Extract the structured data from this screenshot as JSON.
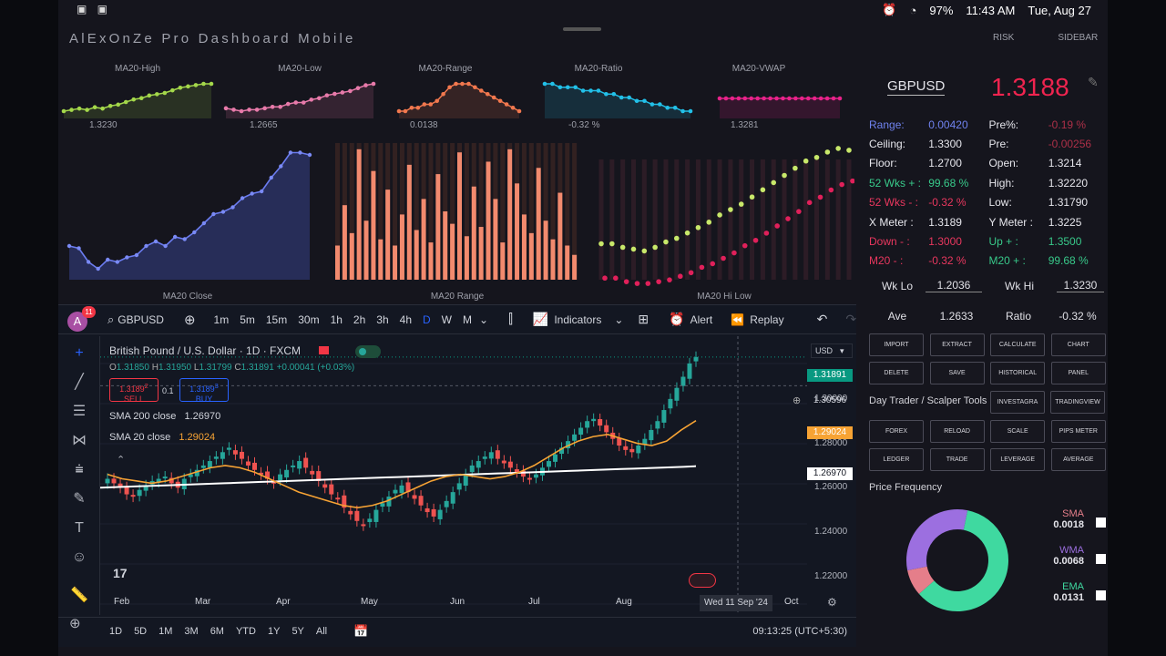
{
  "status_bar": {
    "left_icons": "screenshot-icons",
    "battery": "97%",
    "time": "11:43 AM",
    "date": "Tue, Aug 27"
  },
  "app": {
    "title": "AlExOnZe Pro Dashboard Mobile",
    "links": [
      "RISK",
      "SIDEBAR"
    ]
  },
  "sparklines": [
    {
      "title": "MA20-High",
      "value": "1.3230",
      "color": "#a4d84a",
      "values": [
        10,
        11,
        12,
        11,
        13,
        12,
        14,
        15,
        17,
        19,
        20,
        22,
        23,
        24,
        26,
        28,
        29,
        30,
        31,
        31
      ]
    },
    {
      "title": "MA20-Low",
      "value": "1.2665",
      "color": "#e87aaa",
      "values": [
        13,
        12,
        11,
        12,
        12,
        13,
        14,
        14,
        16,
        17,
        17,
        19,
        20,
        22,
        23,
        24,
        25,
        27,
        29,
        30
      ]
    },
    {
      "title": "MA20-Range",
      "value": "0.0138",
      "color": "#f2784e",
      "values": [
        15,
        15,
        16,
        16,
        17,
        17,
        18,
        20,
        22,
        23,
        23,
        23,
        22,
        21,
        20,
        19,
        18,
        17,
        16,
        15
      ]
    },
    {
      "title": "MA20-Ratio",
      "value": "-0.32 %",
      "color": "#22c0e8",
      "values": [
        26,
        26,
        25,
        25,
        25,
        24,
        24,
        24,
        23,
        23,
        22,
        22,
        21,
        21,
        20,
        20,
        19,
        19,
        18,
        18
      ]
    },
    {
      "title": "MA20-VWAP",
      "value": "1.3281",
      "color": "#e8228a",
      "values": [
        22,
        22,
        22,
        22,
        22,
        22,
        22,
        22,
        22,
        22,
        22,
        22,
        22,
        22,
        22,
        22,
        22,
        22,
        22,
        22
      ]
    }
  ],
  "big_charts": {
    "close_label": "MA20 Close",
    "range_label": "MA20 Range",
    "hilow_label": "MA20 Hi Low",
    "close_values": [
      1.262,
      1.261,
      1.255,
      1.252,
      1.256,
      1.255,
      1.257,
      1.258,
      1.262,
      1.264,
      1.262,
      1.266,
      1.265,
      1.268,
      1.272,
      1.276,
      1.277,
      1.279,
      1.283,
      1.285,
      1.286,
      1.292,
      1.297,
      1.303,
      1.303,
      1.302
    ],
    "range_values": [
      0.011,
      0.024,
      0.015,
      0.042,
      0.019,
      0.035,
      0.013,
      0.029,
      0.011,
      0.021,
      0.037,
      0.016,
      0.026,
      0.012,
      0.034,
      0.022,
      0.018,
      0.041,
      0.014,
      0.03,
      0.017,
      0.038,
      0.026,
      0.012,
      0.042,
      0.031,
      0.021,
      0.015,
      0.036,
      0.019,
      0.013,
      0.028,
      0.011,
      0.008
    ],
    "hi_values": [
      1.27,
      1.27,
      1.268,
      1.267,
      1.266,
      1.268,
      1.271,
      1.273,
      1.276,
      1.279,
      1.282,
      1.286,
      1.289,
      1.292,
      1.296,
      1.3,
      1.304,
      1.308,
      1.312,
      1.316,
      1.318,
      1.321,
      1.323,
      1.322
    ],
    "lo_values": [
      1.258,
      1.258,
      1.256,
      1.255,
      1.255,
      1.256,
      1.257,
      1.259,
      1.261,
      1.264,
      1.266,
      1.269,
      1.272,
      1.276,
      1.279,
      1.283,
      1.287,
      1.291,
      1.295,
      1.3,
      1.303,
      1.307,
      1.31,
      1.312
    ]
  },
  "panel": {
    "symbol": "GBPUSD",
    "price": "1.3188",
    "rows": [
      {
        "l": "Range:",
        "v": "0.00420",
        "l2": "Pre%:",
        "v2": "-0.19 %",
        "cl": "c-blue",
        "cv": "c-blue",
        "cl2": "c-white",
        "cv2": "c-dim"
      },
      {
        "l": "Ceiling:",
        "v": "1.3300",
        "l2": "Pre:",
        "v2": "-0.00256",
        "cl": "c-white",
        "cv": "c-white",
        "cl2": "c-white",
        "cv2": "c-dim"
      },
      {
        "l": "Floor:",
        "v": "1.2700",
        "l2": "Open:",
        "v2": "1.3214",
        "cl": "c-white",
        "cv": "c-white",
        "cl2": "c-white",
        "cv2": "c-white"
      },
      {
        "l": "52 Wks + :",
        "v": "99.68 %",
        "l2": "High:",
        "v2": "1.32220",
        "cl": "c-green",
        "cv": "c-green",
        "cl2": "c-white",
        "cv2": "c-white"
      },
      {
        "l": "52 Wks - :",
        "v": "-0.32 %",
        "l2": "Low:",
        "v2": "1.31790",
        "cl": "c-red",
        "cv": "c-red",
        "cl2": "c-white",
        "cv2": "c-white"
      },
      {
        "l": "X Meter :",
        "v": "1.3189",
        "l2": "Y Meter :",
        "v2": "1.3225",
        "cl": "c-white",
        "cv": "c-white",
        "cl2": "c-white",
        "cv2": "c-white"
      },
      {
        "l": "Down - :",
        "v": "1.3000",
        "l2": "Up + :",
        "v2": "1.3500",
        "cl": "c-red",
        "cv": "c-red",
        "cl2": "c-green",
        "cv2": "c-green"
      },
      {
        "l": "M20 - :",
        "v": "-0.32 %",
        "l2": "M20 + :",
        "v2": "99.68 %",
        "cl": "c-red",
        "cv": "c-red",
        "cl2": "c-green",
        "cv2": "c-green"
      }
    ],
    "wk_lo_label": "Wk Lo",
    "wk_lo": "1.2036",
    "wk_hi_label": "Wk Hi",
    "wk_hi": "1.3230",
    "ave_label": "Ave",
    "ave": "1.2633",
    "ratio_label": "Ratio",
    "ratio": "-0.32 %",
    "buttons_top": [
      "IMPORT",
      "EXTRACT",
      "CALCULATE",
      "CHART",
      "DELETE",
      "SAVE",
      "HISTORICAL",
      "PANEL"
    ],
    "tools_title": "Day Trader / Scalper Tools",
    "tools_first": [
      "INVESTAGRA",
      "TRADINGVIEW"
    ],
    "buttons_bottom": [
      "FOREX",
      "RELOAD",
      "SCALE",
      "PIPS METER",
      "LEDGER",
      "TRADE",
      "LEVERAGE",
      "AVERAGE"
    ],
    "freq_title": "Price Frequency",
    "freq": [
      {
        "name": "SMA",
        "value": "0.0018",
        "color": "#e57e8a"
      },
      {
        "name": "WMA",
        "value": "0.0068",
        "color": "#9c6fe0"
      },
      {
        "name": "EMA",
        "value": "0.0131",
        "color": "#3fd9a0"
      }
    ]
  },
  "tv": {
    "avatar_letter": "A",
    "notif_count": "11",
    "symbol": "GBPUSD",
    "timeframes": [
      "1m",
      "5m",
      "15m",
      "30m",
      "1h",
      "2h",
      "3h",
      "4h",
      "D",
      "W",
      "M"
    ],
    "active_tf": "D",
    "indicators_label": "Indicators",
    "alert_label": "Alert",
    "replay_label": "Replay",
    "title": "British Pound / U.S. Dollar · 1D · FXCM",
    "ohlc": {
      "o": "1.31850",
      "h": "1.31950",
      "l": "1.31799",
      "c": "1.31891",
      "chg": "+0.00041 (+0.03%)"
    },
    "sell_price": "1.3189",
    "sell_sup": "2",
    "sell_label": "SELL",
    "spread": "0.1",
    "buy_price": "1.3189",
    "buy_sup": "3",
    "buy_label": "BUY",
    "sma200_label": "SMA 200 close",
    "sma200": "1.26970",
    "sma20_label": "SMA 20 close",
    "sma20": "1.29024",
    "currency": "USD",
    "price_axis": [
      "1.30000",
      "1.28000",
      "1.26000",
      "1.24000",
      "1.22000"
    ],
    "tag_last": "1.31891",
    "tag_cross": "1.30596",
    "tag_sma20": "1.29024",
    "tag_sma200": "1.26970",
    "months": [
      "Feb",
      "Mar",
      "Apr",
      "May",
      "Jun",
      "Jul",
      "Aug"
    ],
    "crosshair_date": "Wed 11 Sep '24",
    "oct_label": "Oct",
    "ranges": [
      "1D",
      "5D",
      "1M",
      "3M",
      "6M",
      "YTD",
      "1Y",
      "5Y",
      "All"
    ],
    "clock": "09:13:25 (UTC+5:30)",
    "logo": "17"
  },
  "chart_data": {
    "type": "candlestick",
    "title": "British Pound / U.S. Dollar · 1D · FXCM",
    "x_months": [
      "Feb",
      "Mar",
      "Apr",
      "May",
      "Jun",
      "Jul",
      "Aug"
    ],
    "ylim": [
      1.21,
      1.325
    ],
    "close_values": [
      1.264,
      1.262,
      1.26,
      1.257,
      1.256,
      1.259,
      1.261,
      1.263,
      1.264,
      1.265,
      1.262,
      1.26,
      1.264,
      1.266,
      1.268,
      1.27,
      1.272,
      1.274,
      1.276,
      1.278,
      1.275,
      1.273,
      1.27,
      1.268,
      1.266,
      1.264,
      1.262,
      1.266,
      1.268,
      1.27,
      1.272,
      1.269,
      1.266,
      1.263,
      1.26,
      1.257,
      1.255,
      1.251,
      1.248,
      1.245,
      1.243,
      1.246,
      1.25,
      1.253,
      1.256,
      1.259,
      1.261,
      1.258,
      1.255,
      1.252,
      1.249,
      1.247,
      1.25,
      1.254,
      1.258,
      1.262,
      1.266,
      1.27,
      1.272,
      1.274,
      1.276,
      1.273,
      1.271,
      1.269,
      1.267,
      1.265,
      1.264,
      1.266,
      1.269,
      1.272,
      1.275,
      1.278,
      1.281,
      1.284,
      1.287,
      1.29,
      1.291,
      1.288,
      1.285,
      1.282,
      1.279,
      1.277,
      1.276,
      1.279,
      1.282,
      1.286,
      1.29,
      1.295,
      1.3,
      1.305,
      1.31,
      1.316,
      1.3189
    ],
    "sma200_values": [
      1.26,
      1.2602,
      1.2604,
      1.2606,
      1.2608,
      1.261,
      1.2612,
      1.2614,
      1.2616,
      1.2618,
      1.262,
      1.2622,
      1.2624,
      1.2626,
      1.2628,
      1.263,
      1.2632,
      1.2634,
      1.2636,
      1.2638,
      1.264,
      1.2642,
      1.2644,
      1.2646,
      1.2648,
      1.265,
      1.2652,
      1.2654,
      1.2656,
      1.2658,
      1.266,
      1.2662,
      1.2664,
      1.2666,
      1.2668,
      1.267,
      1.2672,
      1.2674,
      1.2676,
      1.2678,
      1.268,
      1.2682,
      1.2684,
      1.2686,
      1.2688,
      1.269,
      1.2692,
      1.2694,
      1.2697
    ],
    "sma20_values": [
      1.266,
      1.264,
      1.263,
      1.262,
      1.263,
      1.265,
      1.267,
      1.269,
      1.27,
      1.269,
      1.267,
      1.264,
      1.261,
      1.258,
      1.256,
      1.254,
      1.252,
      1.251,
      1.252,
      1.254,
      1.257,
      1.26,
      1.263,
      1.265,
      1.266,
      1.265,
      1.264,
      1.265,
      1.267,
      1.27,
      1.274,
      1.278,
      1.281,
      1.283,
      1.284,
      1.282,
      1.28,
      1.279,
      1.281,
      1.286,
      1.2902
    ]
  }
}
